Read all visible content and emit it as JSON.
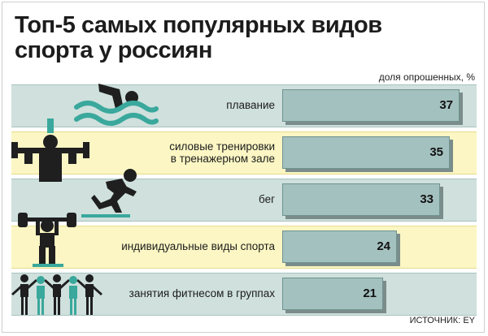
{
  "chart_data": {
    "type": "bar",
    "orientation": "horizontal",
    "title": "Топ-5 самых популярных видов спорта у россиян",
    "unit_label": "доля опрошенных, %",
    "categories": [
      "плавание",
      "силовые тренировки в тренажерном зале",
      "бег",
      "индивидуальные виды спорта",
      "занятия фитнесом в группах"
    ],
    "category_lines": [
      [
        "плавание"
      ],
      [
        "силовые тренировки",
        "в тренажерном зале"
      ],
      [
        "бег"
      ],
      [
        "индивидуальные виды спорта"
      ],
      [
        "занятия фитнесом в группах"
      ]
    ],
    "values": [
      37,
      35,
      33,
      24,
      21
    ],
    "xlim": [
      0,
      37
    ],
    "source": "ИСТОЧНИК: EY",
    "colors": {
      "bar_fill": "#a3c1bf",
      "bar_border": "#6f9390",
      "bar_shadow": "#7b8d8b",
      "band_teal": "#cfe0dd",
      "band_yellow": "#fbf6c3",
      "icon_dark": "#1f1f1f",
      "icon_teal": "#3aa89c"
    },
    "icons": [
      "swimmer-icon",
      "weightlifting-machine-icon",
      "runner-icon",
      "barbell-lifter-icon",
      "fitness-group-icon"
    ]
  }
}
